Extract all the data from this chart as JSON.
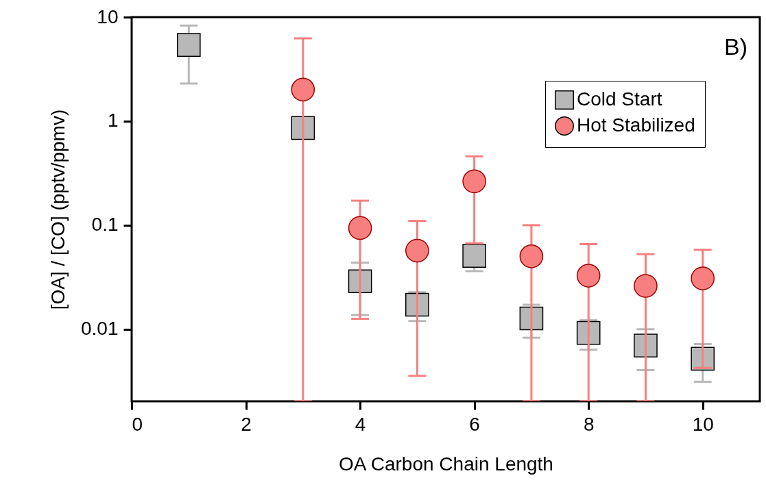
{
  "chart_data": {
    "type": "scatter",
    "xlabel": "OA Carbon Chain Length",
    "ylabel": "[OA] / [CO] (pptv/ppmv)",
    "annotations": [
      "B)"
    ],
    "log": "y",
    "xlim": [
      0,
      11
    ],
    "xticks": [
      0,
      2,
      4,
      6,
      8,
      10
    ],
    "ylim": [
      0.00203,
      10
    ],
    "yticks": [
      10,
      1,
      0.1,
      0.01
    ],
    "grid": false,
    "legend": "top right",
    "series": [
      {
        "name": "Cold Start",
        "color": "#b8b8b8",
        "marker": "square",
        "x": [
          1,
          3,
          4,
          5,
          6,
          7,
          8,
          9,
          10
        ],
        "values": [
          5.4,
          0.86,
          0.0289,
          0.0172,
          0.0508,
          0.0127,
          0.00923,
          0.00697,
          0.00521
        ],
        "errors": [
          [
            2.3,
            8.3
          ],
          null,
          [
            0.0137,
            0.0437
          ],
          [
            0.012,
            0.0227
          ],
          [
            0.0362,
            0.067
          ],
          [
            0.00829,
            0.0172
          ],
          [
            0.00636,
            0.0122
          ],
          [
            0.00405,
            0.01
          ],
          [
            0.00313,
            0.0072
          ]
        ]
      },
      {
        "name": "Hot Stabilized",
        "color": "#f87f7f",
        "marker": "circle",
        "x": [
          3,
          4,
          5,
          6,
          7,
          8,
          9,
          10
        ],
        "values": [
          2.01,
          0.094,
          0.0569,
          0.264,
          0.0502,
          0.0327,
          0.0261,
          0.0308
        ],
        "errors": [
          [
            0.00203,
            6.25
          ],
          [
            0.0126,
            0.172
          ],
          [
            0.00356,
            0.11
          ],
          [
            0.067,
            0.459
          ],
          [
            0.00203,
            0.1
          ],
          [
            0.00203,
            0.0658
          ],
          [
            0.00203,
            0.0527
          ],
          [
            0.00425,
            0.058
          ]
        ]
      }
    ]
  }
}
